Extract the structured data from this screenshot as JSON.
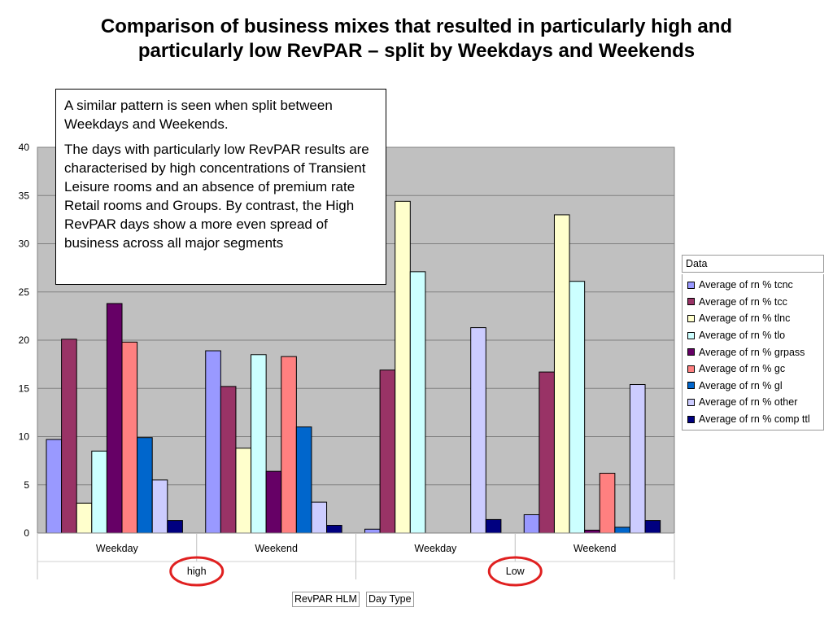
{
  "title_lines": [
    "Comparison of business mixes that resulted in particularly high and",
    "particularly low RevPAR – split by Weekdays and Weekends"
  ],
  "textbox": {
    "para1": "A similar pattern is seen when split between Weekdays and Weekends.",
    "para2": "The days with particularly low RevPAR results are characterised by high concentrations of Transient Leisure rooms and an absence of premium rate Retail rooms and Groups. By contrast, the High RevPAR days show a more even spread of business across all major segments"
  },
  "legend_title": "Data",
  "field_buttons": {
    "row_field_1": "RevPAR HLM",
    "row_field_2": "Day Type"
  },
  "colors": {
    "plot_background": "#c0c0c0",
    "gridline": "#808080",
    "highlight_circle": "#e02020"
  },
  "chart_data": {
    "type": "bar",
    "ylim": [
      0,
      40
    ],
    "yticks": [
      0,
      5,
      10,
      15,
      20,
      25,
      30,
      35,
      40
    ],
    "grid": true,
    "legend_position": "right",
    "categories": [
      "Weekday",
      "Weekend",
      "Weekday",
      "Weekend"
    ],
    "groups": [
      {
        "label": "high",
        "categories": [
          "Weekday",
          "Weekend"
        ],
        "circled": true
      },
      {
        "label": "Low",
        "categories": [
          "Weekday",
          "Weekend"
        ],
        "circled": true
      }
    ],
    "series": [
      {
        "name": "Average of rn % tcnc",
        "color": "#9999ff",
        "values": [
          9.7,
          18.9,
          0.4,
          1.9
        ]
      },
      {
        "name": "Average of rn % tcc",
        "color": "#993366",
        "values": [
          20.1,
          15.2,
          16.9,
          16.7
        ]
      },
      {
        "name": "Average of rn % tlnc",
        "color": "#ffffcc",
        "values": [
          3.1,
          8.8,
          34.4,
          33.0
        ]
      },
      {
        "name": "Average of rn % tlo",
        "color": "#ccffff",
        "values": [
          8.5,
          18.5,
          27.1,
          26.1
        ]
      },
      {
        "name": "Average of rn % grpass",
        "color": "#660066",
        "values": [
          23.8,
          6.4,
          0.0,
          0.3
        ]
      },
      {
        "name": "Average of rn % gc",
        "color": "#ff8080",
        "values": [
          19.8,
          18.3,
          0.0,
          6.2
        ]
      },
      {
        "name": "Average of rn % gl",
        "color": "#0066cc",
        "values": [
          9.9,
          11.0,
          0.0,
          0.6
        ]
      },
      {
        "name": "Average of rn % other",
        "color": "#ccccff",
        "values": [
          5.5,
          3.2,
          21.3,
          15.4
        ]
      },
      {
        "name": "Average of rn % comp ttl",
        "color": "#000080",
        "values": [
          1.3,
          0.8,
          1.4,
          1.3
        ]
      }
    ]
  }
}
